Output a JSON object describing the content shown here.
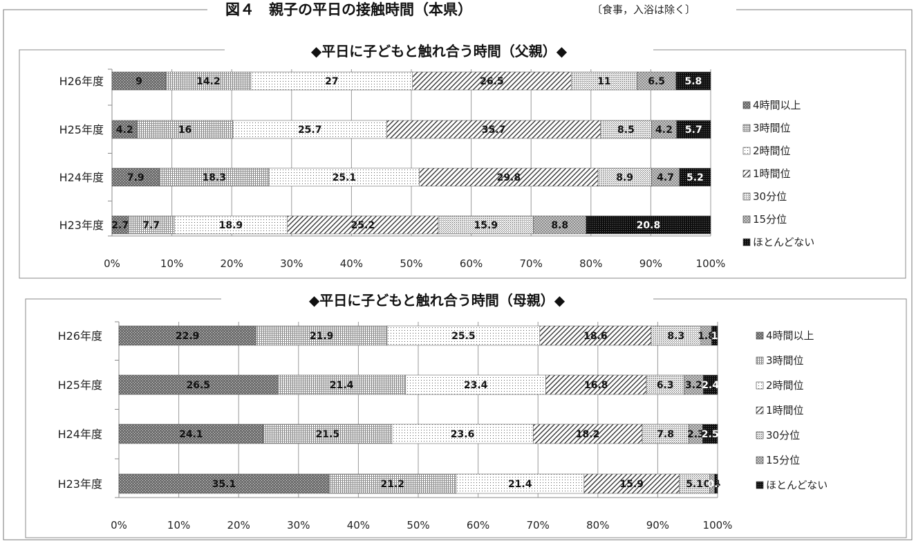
{
  "figure": {
    "title": "図４　親子の平日の接触時間（本県）",
    "note": "〔食事，入浴は除く〕"
  },
  "legend_labels": [
    "4時間以上",
    "3時間位",
    "2時間位",
    "1時間位",
    "30分位",
    "15分位",
    "ほとんどない"
  ],
  "x_ticks": [
    "0%",
    "10%",
    "20%",
    "30%",
    "40%",
    "50%",
    "60%",
    "70%",
    "80%",
    "90%",
    "100%"
  ],
  "chart_data": [
    {
      "type": "bar",
      "orientation": "horizontal",
      "stacked": "100%",
      "title": "◆平日に子どもと触れ合う時間（父親）◆",
      "categories": [
        "H26年度",
        "H25年度",
        "H24年度",
        "H23年度"
      ],
      "series": [
        {
          "name": "4時間以上",
          "values": [
            9,
            4.2,
            7.9,
            2.7
          ]
        },
        {
          "name": "3時間位",
          "values": [
            14.2,
            16,
            18.3,
            7.7
          ]
        },
        {
          "name": "2時間位",
          "values": [
            27,
            25.7,
            25.1,
            18.9
          ]
        },
        {
          "name": "1時間位",
          "values": [
            26.5,
            35.7,
            29.8,
            25.2
          ]
        },
        {
          "name": "30分位",
          "values": [
            11,
            8.5,
            8.9,
            15.9
          ]
        },
        {
          "name": "15分位",
          "values": [
            6.5,
            4.2,
            4.7,
            8.8
          ]
        },
        {
          "name": "ほとんどない",
          "values": [
            5.8,
            5.7,
            5.2,
            20.8
          ]
        }
      ],
      "xlim": [
        0,
        100
      ],
      "grid": true,
      "legend_position": "right"
    },
    {
      "type": "bar",
      "orientation": "horizontal",
      "stacked": "100%",
      "title": "◆平日に子どもと触れ合う時間（母親）◆",
      "categories": [
        "H26年度",
        "H25年度",
        "H24年度",
        "H23年度"
      ],
      "series": [
        {
          "name": "4時間以上",
          "values": [
            22.9,
            26.5,
            24.1,
            35.1
          ]
        },
        {
          "name": "3時間位",
          "values": [
            21.9,
            21.4,
            21.5,
            21.2
          ]
        },
        {
          "name": "2時間位",
          "values": [
            25.5,
            23.4,
            23.6,
            21.4
          ]
        },
        {
          "name": "1時間位",
          "values": [
            18.6,
            16.8,
            18.2,
            15.9
          ]
        },
        {
          "name": "30分位",
          "values": [
            8.3,
            6.3,
            7.8,
            5.1
          ]
        },
        {
          "name": "15分位",
          "values": [
            1.8,
            3.2,
            2.3,
            0.8
          ]
        },
        {
          "name": "ほとんどない",
          "values": [
            1.0,
            2.4,
            2.5,
            0.5
          ]
        }
      ],
      "xlim": [
        0,
        100
      ],
      "grid": true,
      "legend_position": "right"
    }
  ]
}
